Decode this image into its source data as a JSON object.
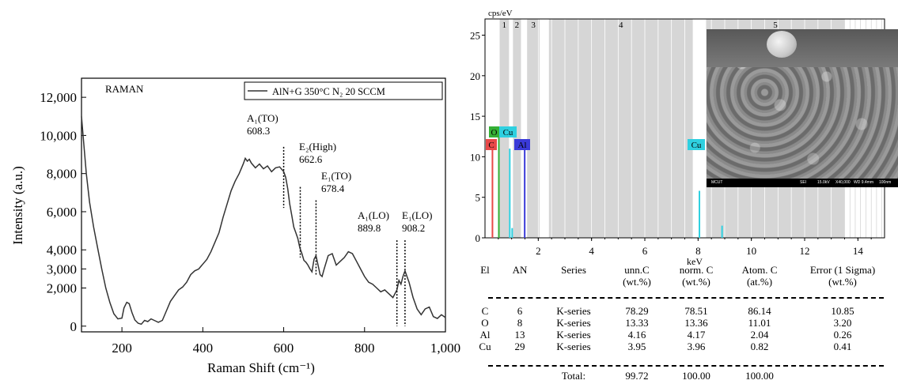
{
  "raman": {
    "title": "RAMAN",
    "legend": "AlN+G 350°C N₂ 20 SCCM",
    "xlabel": "Raman Shift (cm⁻¹)",
    "ylabel": "Intensity (a.u.)",
    "xticks": [
      "200",
      "400",
      "600",
      "800",
      "1,000"
    ],
    "yticks": [
      "0",
      "2,000",
      "3,000",
      "4,000",
      "6,000",
      "8,000",
      "10,000",
      "12,000"
    ],
    "peaks": [
      {
        "mode": "A₁(TO)",
        "shift": "608.3"
      },
      {
        "mode": "E₂(High)",
        "shift": "662.6"
      },
      {
        "mode": "E₁(TO)",
        "shift": "678.4"
      },
      {
        "mode": "A₁(LO)",
        "shift": "889.8"
      },
      {
        "mode": "E₁(LO)",
        "shift": "908.2"
      }
    ]
  },
  "eds": {
    "yunit": "cps/eV",
    "xunit": "keV",
    "yticks": [
      "0",
      "5",
      "10",
      "15",
      "20",
      "25"
    ],
    "xticks": [
      "2",
      "4",
      "6",
      "8",
      "10",
      "12",
      "14"
    ],
    "regions": [
      "1",
      "2",
      "3",
      "4",
      "5"
    ],
    "peak_labels": [
      "C",
      "O",
      "Cu",
      "Al",
      "Cu"
    ],
    "table": {
      "headers": [
        [
          "El",
          ""
        ],
        [
          "AN",
          ""
        ],
        [
          "Series",
          ""
        ],
        [
          "unn.C",
          "(wt.%)"
        ],
        [
          "norm. C",
          "(wt.%)"
        ],
        [
          "Atom. C",
          "(at.%)"
        ],
        [
          "Error (1 Sigma)",
          "(wt.%)"
        ]
      ],
      "rows": [
        [
          "C",
          "6",
          "K-series",
          "78.29",
          "78.51",
          "86.14",
          "10.85"
        ],
        [
          "O",
          "8",
          "K-series",
          "13.33",
          "13.36",
          "11.01",
          "3.20"
        ],
        [
          "Al",
          "13",
          "K-series",
          "4.16",
          "4.17",
          "2.04",
          "0.26"
        ],
        [
          "Cu",
          "29",
          "K-series",
          "3.95",
          "3.96",
          "0.82",
          "0.41"
        ]
      ],
      "total_label": "Total:",
      "totals": [
        "99.72",
        "100.00",
        "100.00"
      ]
    },
    "sem_bar": [
      "MCUT",
      "SEI",
      "15.0kV",
      "X40,000",
      "WD 9.4mm",
      "100nm"
    ]
  },
  "colors": {
    "C": "#e84848",
    "O": "#35b035",
    "Cu": "#2fd0e0",
    "Al": "#3a3ad8",
    "region": "#d6d6d6",
    "line": "#000000"
  },
  "chart_data": [
    {
      "type": "line",
      "title": "RAMAN",
      "xlabel": "Raman Shift (cm⁻¹)",
      "ylabel": "Intensity (a.u.)",
      "xlim": [
        100,
        1000
      ],
      "ylim": [
        -300,
        13000
      ],
      "series": [
        {
          "name": "AlN+G 350°C N₂ 20 SCCM",
          "x": [
            100,
            105,
            112,
            120,
            130,
            140,
            150,
            160,
            170,
            180,
            190,
            200,
            205,
            212,
            218,
            225,
            232,
            240,
            248,
            256,
            264,
            272,
            280,
            290,
            300,
            310,
            320,
            330,
            340,
            350,
            360,
            370,
            380,
            390,
            400,
            410,
            420,
            430,
            440,
            450,
            460,
            470,
            480,
            490,
            500,
            505,
            510,
            515,
            520,
            530,
            540,
            550,
            560,
            570,
            580,
            590,
            600,
            605,
            610,
            615,
            620,
            625,
            630,
            635,
            640,
            645,
            650,
            655,
            660,
            665,
            670,
            675,
            680,
            685,
            690,
            695,
            700,
            710,
            720,
            730,
            740,
            750,
            760,
            770,
            780,
            790,
            800,
            810,
            820,
            830,
            840,
            850,
            860,
            870,
            880,
            885,
            890,
            895,
            900,
            905,
            910,
            920,
            930,
            940,
            950,
            960,
            970,
            980,
            990,
            1000
          ],
          "y": [
            11000,
            9700,
            8000,
            6500,
            5200,
            4100,
            3000,
            2000,
            1250,
            650,
            380,
            420,
            950,
            1250,
            1180,
            700,
            320,
            150,
            100,
            300,
            240,
            380,
            300,
            200,
            300,
            800,
            1300,
            1600,
            1900,
            2050,
            2300,
            2700,
            2900,
            3000,
            3250,
            3500,
            3900,
            4400,
            4900,
            5700,
            6400,
            7100,
            7600,
            8000,
            8500,
            8800,
            8650,
            8750,
            8550,
            8300,
            8500,
            8250,
            8400,
            8100,
            8300,
            8350,
            8100,
            7800,
            7200,
            6400,
            5800,
            5200,
            4900,
            4600,
            4100,
            3800,
            3450,
            3350,
            3200,
            3000,
            2850,
            3500,
            3700,
            3200,
            2700,
            2600,
            3000,
            3700,
            3800,
            3200,
            3400,
            3600,
            3900,
            3800,
            3400,
            3000,
            2600,
            2300,
            2200,
            2000,
            1800,
            1900,
            1700,
            1500,
            1900,
            2400,
            2200,
            2600,
            2900,
            2600,
            2300,
            1500,
            900,
            600,
            900,
            1000,
            500,
            400,
            600,
            450
          ]
        }
      ],
      "annotations": [
        "A₁(TO) 608.3",
        "E₂(High) 662.6",
        "E₁(TO) 678.4",
        "A₁(LO) 889.8",
        "E₁(LO) 908.2"
      ]
    },
    {
      "type": "bar",
      "xlabel": "keV",
      "ylabel": "cps/eV",
      "xlim": [
        0,
        15
      ],
      "ylim": [
        0,
        27
      ],
      "series": [
        {
          "name": "C",
          "x": [
            0.28
          ],
          "values": [
            11.0
          ]
        },
        {
          "name": "O",
          "x": [
            0.52
          ],
          "values": [
            13.0
          ]
        },
        {
          "name": "Cu",
          "x": [
            0.93,
            1.02,
            8.05,
            8.9
          ],
          "values": [
            11.0,
            1.2,
            5.8,
            1.5
          ]
        },
        {
          "name": "Al",
          "x": [
            1.49
          ],
          "values": [
            11.0
          ]
        }
      ]
    }
  ]
}
